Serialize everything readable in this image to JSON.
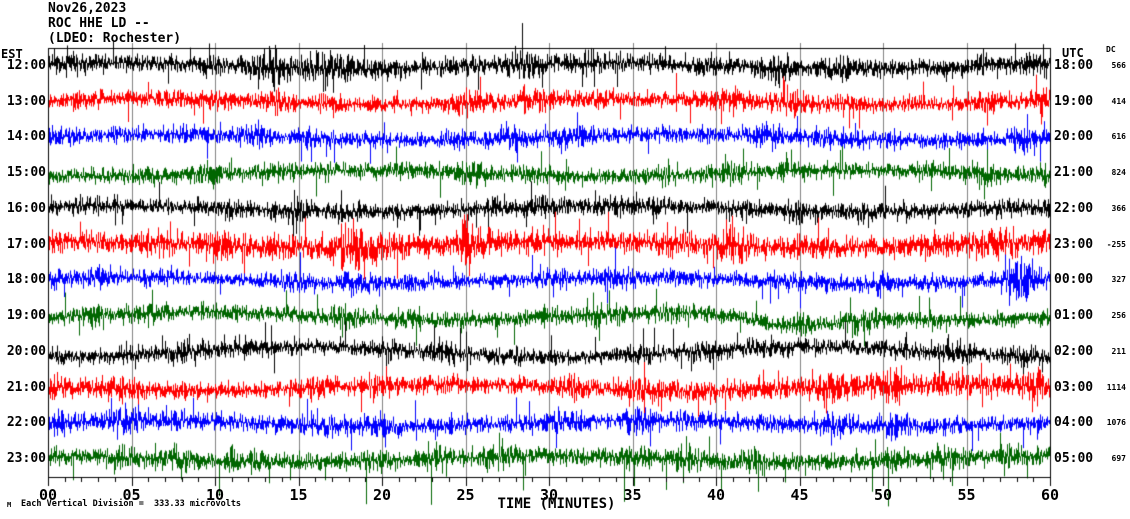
{
  "header": {
    "date_line": "Nov26,2023",
    "station_line": "ROC HHE LD --",
    "network_line": "(LDEO: Rochester)"
  },
  "axes": {
    "left_header": "EST",
    "right_header": "UTC",
    "dc_header": "DC",
    "x_axis_title": "TIME (MINUTES)",
    "x_tick_labels": [
      "00",
      "05",
      "10",
      "15",
      "20",
      "25",
      "30",
      "35",
      "40",
      "45",
      "50",
      "55",
      "60"
    ],
    "scale_note": "Each Vertical Division =  333.33 microvolts",
    "logo_mark": "M"
  },
  "chart_data": {
    "type": "line",
    "kind": "helicorder-seismogram",
    "station": "ROC HHE LD --",
    "network": "(LDEO: Rochester)",
    "date": "Nov26,2023",
    "x_range_minutes": [
      0,
      60
    ],
    "major_tick_minutes": 5,
    "minor_tick_minutes": 1,
    "grid": "vertical-lines-every-5-minutes",
    "grid_color": "#808080",
    "frame_color": "#000000",
    "vertical_division_microvolts": 333.33,
    "trace_colors": {
      "black": "#000000",
      "red": "#ff0000",
      "blue": "#0000ff",
      "green": "#006600"
    },
    "rows": [
      {
        "est": "12:00",
        "utc": "18:00",
        "dc": "566",
        "color": "black",
        "amp": 1.15,
        "cap_up": 42,
        "cap_down": 24,
        "bursts": [
          {
            "center": 16,
            "span": 4,
            "gain": 0.5
          }
        ]
      },
      {
        "est": "13:00",
        "utc": "19:00",
        "dc": "414",
        "color": "red",
        "amp": 1.05,
        "cap_up": 26,
        "cap_down": 24,
        "bursts": []
      },
      {
        "est": "14:00",
        "utc": "20:00",
        "dc": "616",
        "color": "blue",
        "amp": 1.0,
        "cap_up": 24,
        "cap_down": 24,
        "bursts": []
      },
      {
        "est": "15:00",
        "utc": "21:00",
        "dc": "824",
        "color": "green",
        "amp": 1.0,
        "cap_up": 24,
        "cap_down": 26,
        "bursts": []
      },
      {
        "est": "16:00",
        "utc": "22:00",
        "dc": "366",
        "color": "black",
        "amp": 1.0,
        "cap_up": 26,
        "cap_down": 26,
        "bursts": []
      },
      {
        "est": "17:00",
        "utc": "23:00",
        "dc": "-255",
        "color": "red",
        "amp": 1.35,
        "cap_up": 30,
        "cap_down": 32,
        "bursts": [
          {
            "center": 18.3,
            "span": 1.3,
            "gain": 1.6
          },
          {
            "center": 25,
            "span": 0.35,
            "gain": 1.6
          }
        ]
      },
      {
        "est": "18:00",
        "utc": "00:00",
        "dc": "327",
        "color": "blue",
        "amp": 1.0,
        "cap_up": 30,
        "cap_down": 26,
        "bursts": [
          {
            "center": 58.3,
            "span": 1.1,
            "gain": 1.8
          }
        ]
      },
      {
        "est": "19:00",
        "utc": "01:00",
        "dc": "256",
        "color": "green",
        "amp": 1.0,
        "drift": 4,
        "cap_up": 24,
        "cap_down": 26,
        "dips": [
          {
            "center": 44.5,
            "span": 3.5,
            "amount": 11
          }
        ],
        "bursts": []
      },
      {
        "est": "20:00",
        "utc": "02:00",
        "dc": "211",
        "color": "black",
        "amp": 1.0,
        "drift": 5,
        "cap_up": 26,
        "cap_down": 26,
        "bursts": []
      },
      {
        "est": "21:00",
        "utc": "03:00",
        "dc": "1114",
        "color": "red",
        "amp": 1.1,
        "cap_up": 28,
        "cap_down": 26,
        "bursts": [
          {
            "center": 50,
            "span": 12,
            "gain": 0.45
          },
          {
            "center": 59.4,
            "span": 0.7,
            "gain": 1.2
          }
        ]
      },
      {
        "est": "22:00",
        "utc": "04:00",
        "dc": "1076",
        "color": "blue",
        "amp": 1.1,
        "cap_up": 26,
        "cap_down": 26,
        "bursts": []
      },
      {
        "est": "23:00",
        "utc": "05:00",
        "dc": "697",
        "color": "green",
        "amp": 1.15,
        "cap_up": 24,
        "cap_down": 46,
        "neg_spike_p": 0.012,
        "bursts": []
      }
    ]
  }
}
